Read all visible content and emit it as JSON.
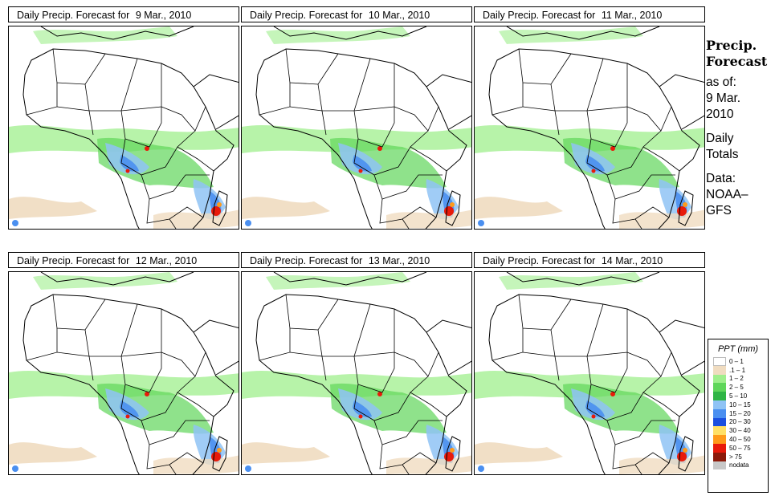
{
  "panels": [
    {
      "prefix": "Daily Precip. Forecast for",
      "date": "9 Mar., 2010"
    },
    {
      "prefix": "Daily Precip. Forecast for",
      "date": "10 Mar., 2010"
    },
    {
      "prefix": "Daily Precip. Forecast for",
      "date": "11 Mar., 2010"
    },
    {
      "prefix": "Daily Precip. Forecast for",
      "date": "12 Mar., 2010"
    },
    {
      "prefix": "Daily Precip. Forecast for",
      "date": "13 Mar., 2010"
    },
    {
      "prefix": "Daily Precip. Forecast for",
      "date": "14 Mar., 2010"
    }
  ],
  "sidebar": {
    "title_line1": "Precip.",
    "title_line2": "Forecast",
    "asof_label": "as of:",
    "asof_day_month": "9 Mar.",
    "asof_year": "2010",
    "daily_line1": "Daily",
    "daily_line2": "Totals",
    "data_label": "Data:",
    "data_source1": "NOAA–",
    "data_source2": "GFS"
  },
  "legend": {
    "title": "PPT (mm)",
    "items": [
      {
        "label": "0 – 1",
        "color": "#ffffff"
      },
      {
        "label": ".1 – 1",
        "color": "#f0dcc0"
      },
      {
        "label": "1 – 2",
        "color": "#9fef8c"
      },
      {
        "label": "2 – 5",
        "color": "#5fd65a"
      },
      {
        "label": "5 – 10",
        "color": "#2fb545"
      },
      {
        "label": "10 – 15",
        "color": "#8fc3f5"
      },
      {
        "label": "15 – 20",
        "color": "#4a8ff0"
      },
      {
        "label": "20 – 30",
        "color": "#1a4fe0"
      },
      {
        "label": "30 – 40",
        "color": "#ffe066"
      },
      {
        "label": "40 – 50",
        "color": "#ff9a1a"
      },
      {
        "label": "50 – 75",
        "color": "#e81a0a"
      },
      {
        "label": "> 75",
        "color": "#8c1a0a"
      },
      {
        "label": "nodata",
        "color": "#c8c8c8"
      }
    ]
  }
}
